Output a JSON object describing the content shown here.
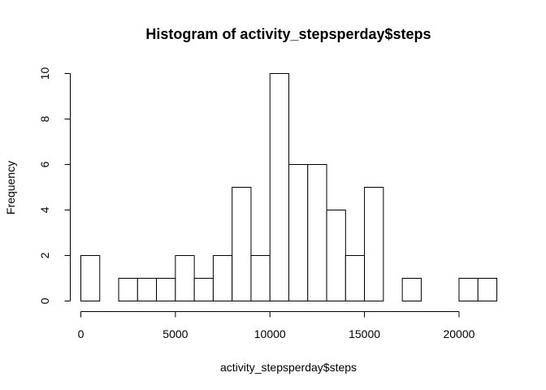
{
  "chart_data": {
    "type": "bar",
    "title": "Histogram of activity_stepsperday$steps",
    "xlabel": "activity_stepsperday$steps",
    "ylabel": "Frequency",
    "bin_width": 1000,
    "bins": [
      {
        "start": 0,
        "end": 1000,
        "count": 2
      },
      {
        "start": 1000,
        "end": 2000,
        "count": 0
      },
      {
        "start": 2000,
        "end": 3000,
        "count": 1
      },
      {
        "start": 3000,
        "end": 4000,
        "count": 1
      },
      {
        "start": 4000,
        "end": 5000,
        "count": 1
      },
      {
        "start": 5000,
        "end": 6000,
        "count": 2
      },
      {
        "start": 6000,
        "end": 7000,
        "count": 1
      },
      {
        "start": 7000,
        "end": 8000,
        "count": 2
      },
      {
        "start": 8000,
        "end": 9000,
        "count": 5
      },
      {
        "start": 9000,
        "end": 10000,
        "count": 2
      },
      {
        "start": 10000,
        "end": 11000,
        "count": 10
      },
      {
        "start": 11000,
        "end": 12000,
        "count": 6
      },
      {
        "start": 12000,
        "end": 13000,
        "count": 6
      },
      {
        "start": 13000,
        "end": 14000,
        "count": 4
      },
      {
        "start": 14000,
        "end": 15000,
        "count": 2
      },
      {
        "start": 15000,
        "end": 16000,
        "count": 5
      },
      {
        "start": 16000,
        "end": 17000,
        "count": 0
      },
      {
        "start": 17000,
        "end": 18000,
        "count": 1
      },
      {
        "start": 18000,
        "end": 19000,
        "count": 0
      },
      {
        "start": 19000,
        "end": 20000,
        "count": 0
      },
      {
        "start": 20000,
        "end": 21000,
        "count": 1
      },
      {
        "start": 21000,
        "end": 22000,
        "count": 1
      }
    ],
    "xlim": [
      0,
      22000
    ],
    "ylim": [
      0,
      10
    ],
    "x_ticks": [
      0,
      5000,
      10000,
      15000,
      20000
    ],
    "x_tick_labels": [
      "0",
      "5000",
      "10000",
      "15000",
      "20000"
    ],
    "y_ticks": [
      0,
      2,
      4,
      6,
      8,
      10
    ],
    "y_tick_labels": [
      "0",
      "2",
      "4",
      "6",
      "8",
      "10"
    ],
    "grid": false,
    "bar_fill": "#ffffff",
    "bar_stroke": "#000000"
  }
}
